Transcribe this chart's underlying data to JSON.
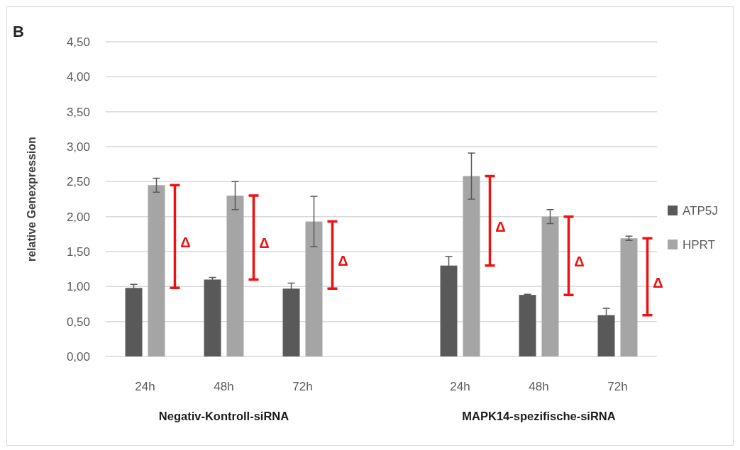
{
  "chart_data": {
    "type": "bar",
    "title": "B",
    "ylabel": "relative Genexpression",
    "categories": [
      "24h",
      "48h",
      "72h",
      null,
      "24h",
      "48h",
      "72h"
    ],
    "series": [
      {
        "name": "ATP5J",
        "color": "#595959",
        "values": [
          0.98,
          1.1,
          0.97,
          null,
          1.3,
          0.88,
          0.59
        ],
        "errors": [
          0.05,
          0.03,
          0.08,
          null,
          0.13,
          0.01,
          0.1
        ]
      },
      {
        "name": "HPRT",
        "color": "#a5a5a5",
        "values": [
          2.45,
          2.3,
          1.93,
          null,
          2.58,
          2.0,
          1.69
        ],
        "errors": [
          0.1,
          0.2,
          0.36,
          null,
          0.33,
          0.1,
          0.03
        ]
      }
    ],
    "ylim": [
      0,
      4.5
    ],
    "yticks": [
      {
        "value": 0,
        "label": "0,00"
      },
      {
        "value": 0.5,
        "label": "0,50"
      },
      {
        "value": 1,
        "label": "1,00"
      },
      {
        "value": 1.5,
        "label": "1,50"
      },
      {
        "value": 2,
        "label": "2,00"
      },
      {
        "value": 2.5,
        "label": "2,50"
      },
      {
        "value": 3,
        "label": "3,00"
      },
      {
        "value": 3.5,
        "label": "3,50"
      },
      {
        "value": 4,
        "label": "4,00"
      },
      {
        "value": 4.5,
        "label": "4,50"
      }
    ],
    "grid": "y",
    "legend": "right",
    "annotations": [
      "Negativ-Kontroll-siRNA",
      "MAPK14-spezifische-siRNA",
      "Δ",
      "Δ",
      "Δ",
      "Δ",
      "Δ",
      "Δ"
    ]
  }
}
